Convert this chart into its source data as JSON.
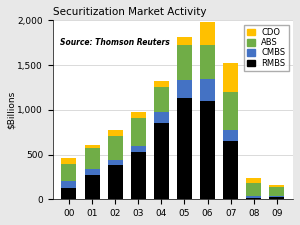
{
  "title": "Securitization Market Activity",
  "ylabel": "$Billions",
  "source": "Source: Thomson Reuters",
  "years": [
    "00",
    "01",
    "02",
    "03",
    "04",
    "05",
    "06",
    "07",
    "08",
    "09"
  ],
  "RMBS": [
    130,
    270,
    380,
    530,
    850,
    1130,
    1100,
    650,
    20,
    30
  ],
  "CMBS": [
    70,
    70,
    60,
    70,
    130,
    200,
    250,
    120,
    15,
    10
  ],
  "ABS": [
    200,
    230,
    270,
    310,
    280,
    400,
    380,
    430,
    150,
    100
  ],
  "CDO": [
    60,
    40,
    60,
    70,
    65,
    85,
    250,
    330,
    50,
    20
  ],
  "colors": {
    "RMBS": "#000000",
    "CMBS": "#4472c4",
    "ABS": "#70ad47",
    "CDO": "#ffc000"
  },
  "ylim": [
    0,
    2000
  ],
  "yticks": [
    0,
    500,
    1000,
    1500,
    2000
  ],
  "ytick_labels": [
    "0",
    "500",
    "1,000",
    "1,500",
    "2,000"
  ],
  "background_color": "#e8e8e8",
  "plot_bg": "#ffffff",
  "title_fontsize": 7.5,
  "axis_fontsize": 6.5,
  "legend_fontsize": 6,
  "bar_width": 0.65
}
